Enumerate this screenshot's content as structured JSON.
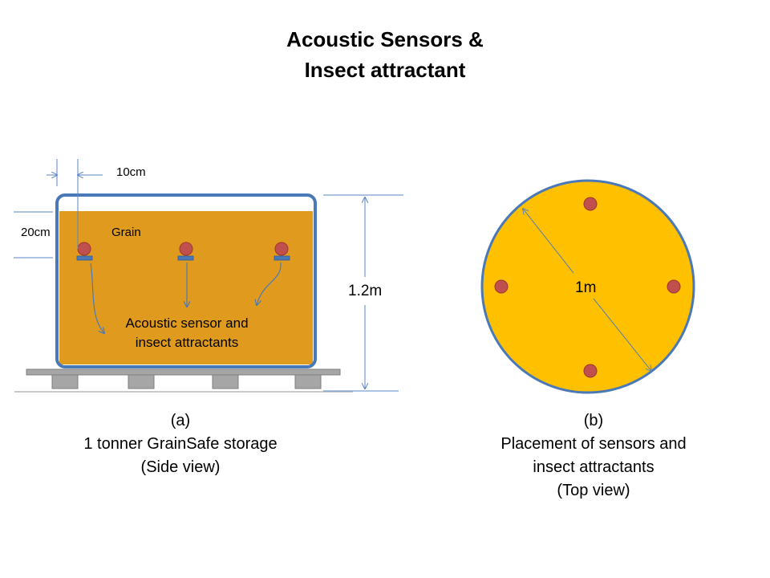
{
  "title": {
    "line1": "Acoustic Sensors &",
    "line2": "Insect attractant"
  },
  "side_view": {
    "dim_top": "10cm",
    "dim_left": "20cm",
    "grain_label": "Grain",
    "height_label": "1.2m",
    "callout_line1": "Acoustic sensor and",
    "callout_line2": "insect attractants",
    "caption_line1": "(a)",
    "caption_line2": "1 tonner GrainSafe storage",
    "caption_line3": "(Side view)"
  },
  "top_view": {
    "diameter_label": "1m",
    "caption_line1": "(b)",
    "caption_line2": "Placement of sensors and",
    "caption_line3": "insect attractants",
    "caption_line4": "(Top view)"
  },
  "colors": {
    "grain": "#E09B1F",
    "top_disc": "#FFC000",
    "outline": "#4A79B8",
    "dim_line": "#5A86C5",
    "sensor": "#C0504D",
    "pallet": "#A6A6A6"
  }
}
